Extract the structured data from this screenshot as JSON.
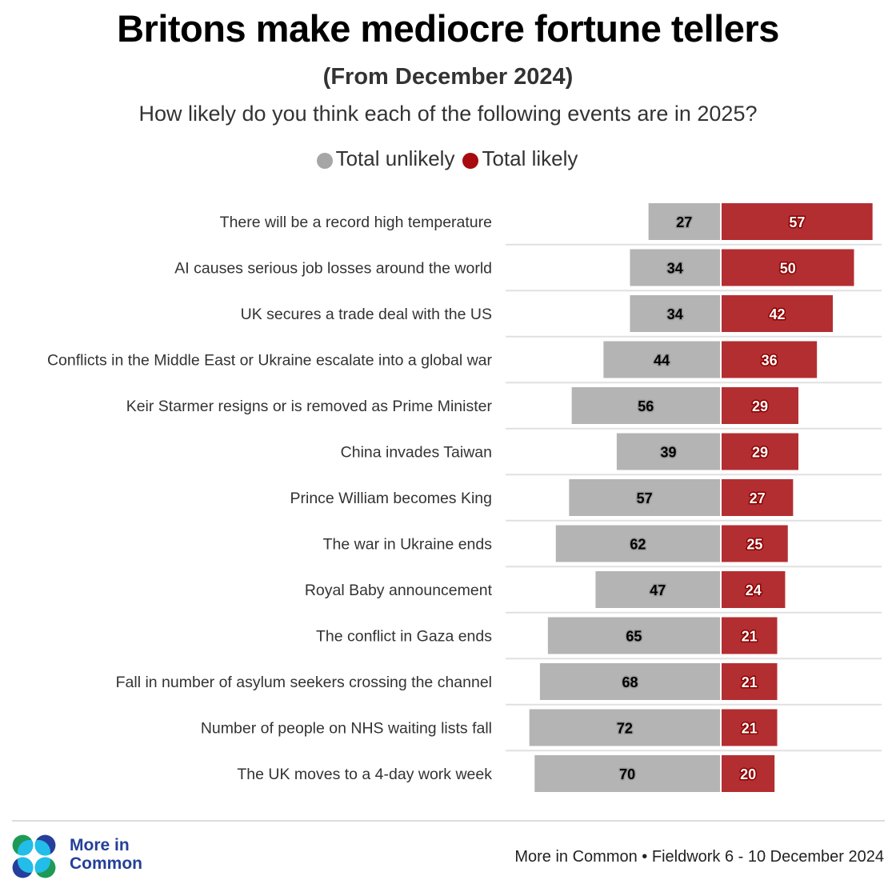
{
  "header": {
    "title": "Britons make mediocre fortune tellers",
    "subtitle": "(From December 2024)",
    "question": "How likely do you think each of the following events are in 2025?"
  },
  "legend": [
    {
      "label": "Total unlikely",
      "color": "#a6a6a6"
    },
    {
      "label": "Total likely",
      "color": "#a80a0f"
    }
  ],
  "colors": {
    "unlikely_bar": "#b4b4b4",
    "likely_bar": "#b32e31",
    "separator": "#e0e0e0",
    "brand_blue": "#25409a",
    "brand_green": "#1e9a55",
    "brand_light_blue": "#22bde9",
    "brand_dark_blue": "#263e9c"
  },
  "chart_data": {
    "type": "bar",
    "orientation": "horizontal-diverging",
    "title": "Britons make mediocre fortune tellers",
    "subtitle": "(From December 2024)",
    "question": "How likely do you think each of the following events are in 2025?",
    "legend_position": "top-center",
    "categories": [
      "There will be a record high temperature",
      "AI causes serious job losses around the world",
      "UK secures a trade deal with the US",
      "Conflicts in the Middle East or Ukraine escalate into a global war",
      "Keir Starmer resigns or is removed as Prime Minister",
      "China invades Taiwan",
      "Prince William becomes King",
      "The war in Ukraine ends",
      "Royal Baby announcement",
      "The conflict in Gaza ends",
      "Fall in number of asylum seekers crossing the channel",
      "Number of people on NHS waiting lists fall",
      "The UK moves to a 4-day work week"
    ],
    "series": [
      {
        "name": "Total unlikely",
        "values": [
          27,
          34,
          34,
          44,
          56,
          39,
          57,
          62,
          47,
          65,
          68,
          72,
          70
        ]
      },
      {
        "name": "Total likely",
        "values": [
          57,
          50,
          42,
          36,
          29,
          29,
          27,
          25,
          24,
          21,
          21,
          21,
          20
        ]
      }
    ],
    "units": "%"
  },
  "footer": {
    "logo_line1": "More in",
    "logo_line2": "Common",
    "source": "More in Common • Fieldwork 6 - 10 December 2024"
  }
}
